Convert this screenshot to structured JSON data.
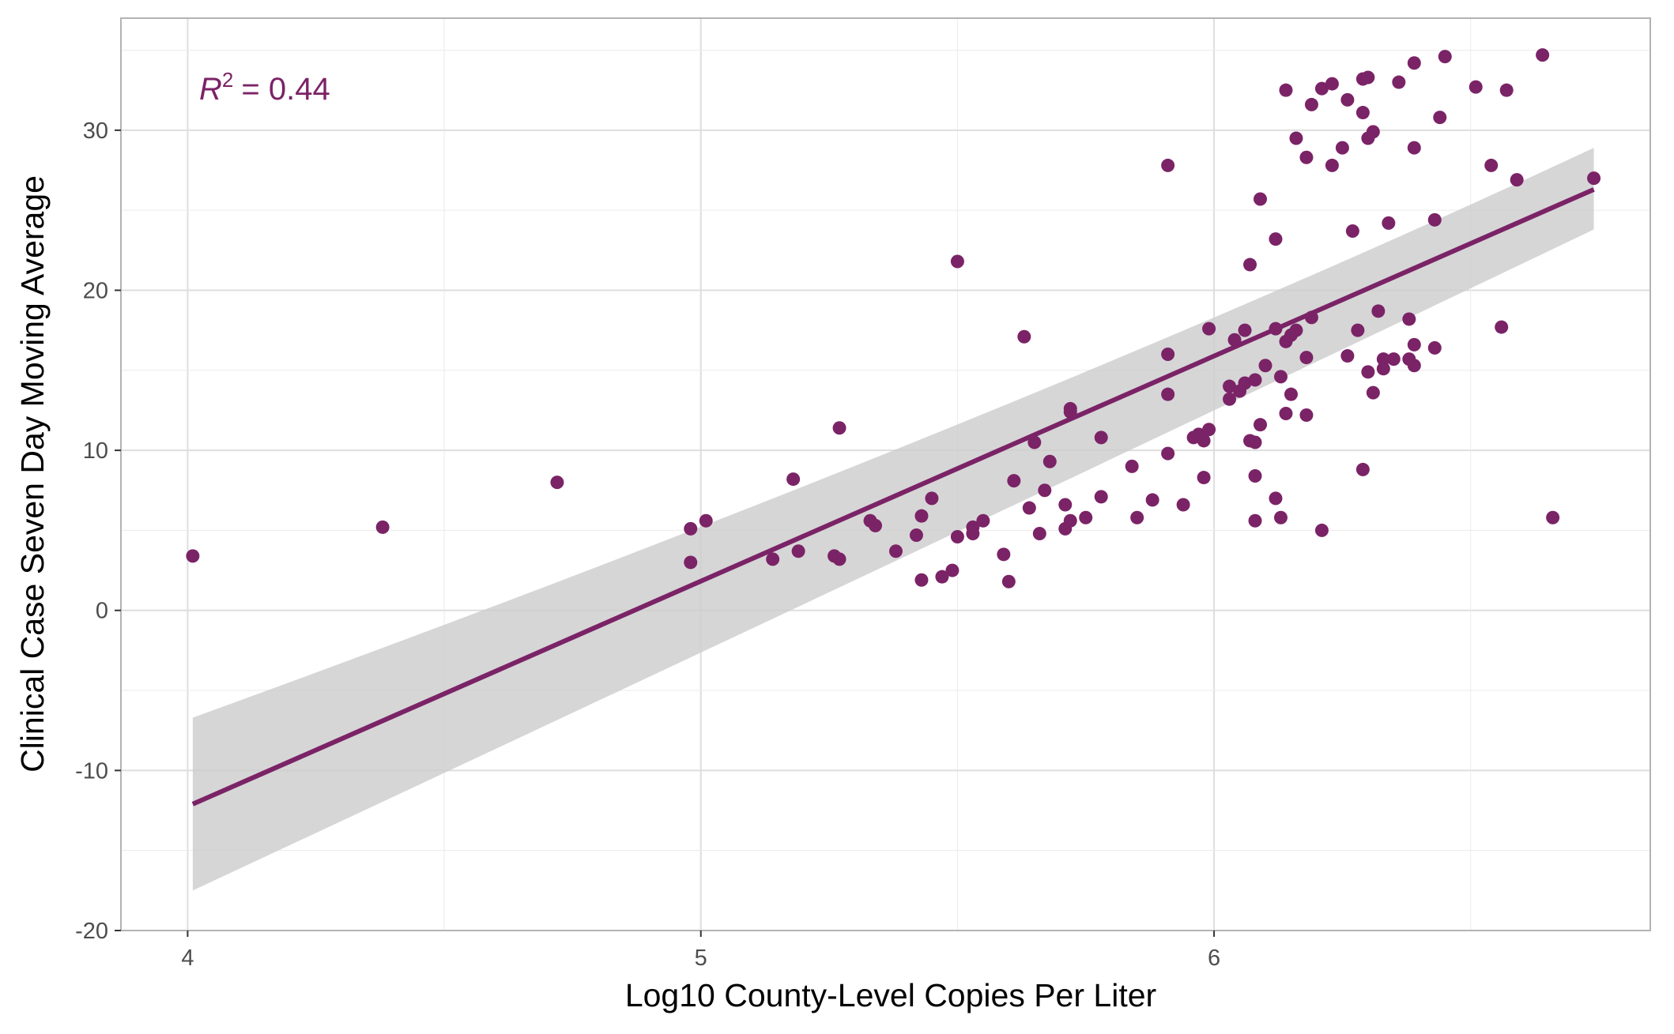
{
  "chart_data": {
    "type": "scatter",
    "xlabel": "Log10 County-Level Copies Per Liter",
    "ylabel": "Clinical Case Seven Day Moving Average",
    "xlim": [
      3.87,
      6.85
    ],
    "ylim": [
      -20,
      37
    ],
    "x_ticks": [
      4,
      5,
      6
    ],
    "y_ticks": [
      -20,
      -10,
      0,
      10,
      20,
      30
    ],
    "grid": true,
    "annotation": {
      "r2_symbol": "R",
      "r2_superscript": "2",
      "r2_value": "= 0.44"
    },
    "colors": {
      "points": "#7b2367",
      "line": "#7b2367",
      "ribbon": "#cccccc",
      "grid": "#dedede",
      "panel_border": "#b3b3b3"
    },
    "regression": {
      "x": [
        4.01,
        6.74
      ],
      "y": [
        -12.1,
        26.3
      ],
      "ci_lower": [
        -17.5,
        23.8
      ],
      "ci_upper": [
        -6.7,
        28.9
      ],
      "ci_mid_x": 5.6,
      "ci_mid_lower": 7.5,
      "ci_mid_upper": 10.6
    },
    "points": [
      [
        4.01,
        3.4
      ],
      [
        4.38,
        5.2
      ],
      [
        4.72,
        8.0
      ],
      [
        4.98,
        3.0
      ],
      [
        4.98,
        5.1
      ],
      [
        5.01,
        5.6
      ],
      [
        5.14,
        3.2
      ],
      [
        5.18,
        8.2
      ],
      [
        5.19,
        3.7
      ],
      [
        5.26,
        3.4
      ],
      [
        5.27,
        11.4
      ],
      [
        5.27,
        3.2
      ],
      [
        5.33,
        5.6
      ],
      [
        5.34,
        5.3
      ],
      [
        5.38,
        3.7
      ],
      [
        5.42,
        4.7
      ],
      [
        5.43,
        1.9
      ],
      [
        5.43,
        5.9
      ],
      [
        5.45,
        7.0
      ],
      [
        5.47,
        2.1
      ],
      [
        5.49,
        2.5
      ],
      [
        5.5,
        4.6
      ],
      [
        5.5,
        21.8
      ],
      [
        5.53,
        4.8
      ],
      [
        5.53,
        5.2
      ],
      [
        5.55,
        5.6
      ],
      [
        5.59,
        3.5
      ],
      [
        5.6,
        1.8
      ],
      [
        5.61,
        8.1
      ],
      [
        5.63,
        17.1
      ],
      [
        5.64,
        6.4
      ],
      [
        5.65,
        10.5
      ],
      [
        5.66,
        4.8
      ],
      [
        5.67,
        7.5
      ],
      [
        5.68,
        9.3
      ],
      [
        5.71,
        5.1
      ],
      [
        5.71,
        6.6
      ],
      [
        5.72,
        5.6
      ],
      [
        5.72,
        12.6
      ],
      [
        5.72,
        12.4
      ],
      [
        5.75,
        5.8
      ],
      [
        5.78,
        7.1
      ],
      [
        5.78,
        10.8
      ],
      [
        5.84,
        9.0
      ],
      [
        5.85,
        5.8
      ],
      [
        5.88,
        6.9
      ],
      [
        5.91,
        27.8
      ],
      [
        5.91,
        16.0
      ],
      [
        5.91,
        13.5
      ],
      [
        5.91,
        9.8
      ],
      [
        5.94,
        6.6
      ],
      [
        5.96,
        10.8
      ],
      [
        5.97,
        11.0
      ],
      [
        5.98,
        10.6
      ],
      [
        5.98,
        8.3
      ],
      [
        5.99,
        11.3
      ],
      [
        5.99,
        17.6
      ],
      [
        6.03,
        13.2
      ],
      [
        6.03,
        14.0
      ],
      [
        6.04,
        16.9
      ],
      [
        6.05,
        13.7
      ],
      [
        6.06,
        17.5
      ],
      [
        6.06,
        14.2
      ],
      [
        6.07,
        10.6
      ],
      [
        6.07,
        21.6
      ],
      [
        6.08,
        10.5
      ],
      [
        6.08,
        14.4
      ],
      [
        6.08,
        8.4
      ],
      [
        6.08,
        5.6
      ],
      [
        6.09,
        25.7
      ],
      [
        6.09,
        11.6
      ],
      [
        6.1,
        15.3
      ],
      [
        6.12,
        23.2
      ],
      [
        6.12,
        7.0
      ],
      [
        6.12,
        17.6
      ],
      [
        6.13,
        5.8
      ],
      [
        6.13,
        14.6
      ],
      [
        6.14,
        12.3
      ],
      [
        6.14,
        16.8
      ],
      [
        6.14,
        32.5
      ],
      [
        6.15,
        13.5
      ],
      [
        6.15,
        17.2
      ],
      [
        6.16,
        17.5
      ],
      [
        6.16,
        29.5
      ],
      [
        6.18,
        28.3
      ],
      [
        6.18,
        15.8
      ],
      [
        6.18,
        12.2
      ],
      [
        6.19,
        18.3
      ],
      [
        6.19,
        31.6
      ],
      [
        6.21,
        32.6
      ],
      [
        6.21,
        5.0
      ],
      [
        6.23,
        32.9
      ],
      [
        6.23,
        27.8
      ],
      [
        6.25,
        28.9
      ],
      [
        6.26,
        31.9
      ],
      [
        6.26,
        15.9
      ],
      [
        6.27,
        23.7
      ],
      [
        6.28,
        17.5
      ],
      [
        6.29,
        31.1
      ],
      [
        6.29,
        33.2
      ],
      [
        6.29,
        8.8
      ],
      [
        6.3,
        33.3
      ],
      [
        6.3,
        29.5
      ],
      [
        6.3,
        14.9
      ],
      [
        6.31,
        29.9
      ],
      [
        6.31,
        13.6
      ],
      [
        6.32,
        18.7
      ],
      [
        6.33,
        15.1
      ],
      [
        6.33,
        15.7
      ],
      [
        6.34,
        24.2
      ],
      [
        6.35,
        15.7
      ],
      [
        6.36,
        33.0
      ],
      [
        6.38,
        18.2
      ],
      [
        6.38,
        15.7
      ],
      [
        6.39,
        28.9
      ],
      [
        6.39,
        34.2
      ],
      [
        6.39,
        16.6
      ],
      [
        6.39,
        15.3
      ],
      [
        6.43,
        24.4
      ],
      [
        6.43,
        16.4
      ],
      [
        6.44,
        30.8
      ],
      [
        6.45,
        34.6
      ],
      [
        6.51,
        32.7
      ],
      [
        6.54,
        27.8
      ],
      [
        6.56,
        17.7
      ],
      [
        6.57,
        32.5
      ],
      [
        6.59,
        26.9
      ],
      [
        6.64,
        34.7
      ],
      [
        6.66,
        5.8
      ],
      [
        6.74,
        27.0
      ]
    ]
  }
}
